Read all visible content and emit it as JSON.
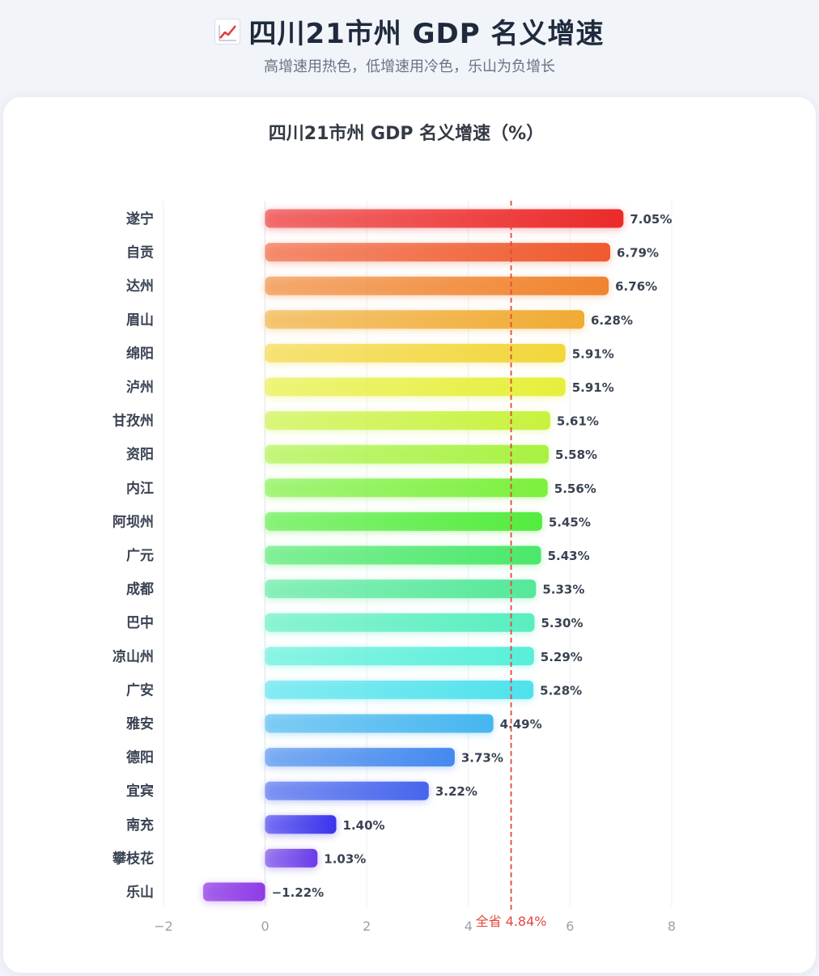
{
  "header": {
    "icon": "chart-increasing-icon",
    "title": "四川21市州 GDP 名义增速",
    "subtitle": "高增速用热色，低增速用冷色，乐山为负增长"
  },
  "chart_data": {
    "type": "bar",
    "orientation": "horizontal",
    "title": "四川21市州 GDP 名义增速（%）",
    "categories": [
      "遂宁",
      "自贡",
      "达州",
      "眉山",
      "绵阳",
      "泸州",
      "甘孜州",
      "资阳",
      "内江",
      "阿坝州",
      "广元",
      "成都",
      "巴中",
      "凉山州",
      "广安",
      "雅安",
      "德阳",
      "宜宾",
      "南充",
      "攀枝花",
      "乐山"
    ],
    "values": [
      7.05,
      6.79,
      6.76,
      6.28,
      5.91,
      5.91,
      5.61,
      5.58,
      5.56,
      5.45,
      5.43,
      5.33,
      5.3,
      5.29,
      5.28,
      4.49,
      3.73,
      3.22,
      1.4,
      1.03,
      -1.22
    ],
    "value_labels": [
      "7.05%",
      "6.79%",
      "6.76%",
      "6.28%",
      "5.91%",
      "5.91%",
      "5.61%",
      "5.58%",
      "5.56%",
      "5.45%",
      "5.43%",
      "5.33%",
      "5.30%",
      "5.29%",
      "5.28%",
      "4.49%",
      "3.73%",
      "3.22%",
      "1.40%",
      "1.03%",
      "−1.22%"
    ],
    "colors": [
      "#ec2a2a",
      "#ef5a2e",
      "#f0842f",
      "#f0ab34",
      "#f2d63a",
      "#e6ef3c",
      "#c8f23f",
      "#a8f242",
      "#7cf03e",
      "#54ec3e",
      "#4be86a",
      "#55e89a",
      "#58eebf",
      "#58efd9",
      "#4fe2ec",
      "#46b6ef",
      "#4489ee",
      "#4665ec",
      "#3b33ec",
      "#6a3ce8",
      "#8f3be6"
    ],
    "xlim": [
      -2,
      8
    ],
    "xticks": [
      -2,
      0,
      2,
      4,
      6,
      8
    ],
    "xtick_labels": [
      "−2",
      "0",
      "2",
      "4",
      "6",
      "8"
    ],
    "grid": true,
    "reference_line": {
      "value": 4.84,
      "label": "全省 4.84%",
      "color": "#e1493e"
    }
  }
}
